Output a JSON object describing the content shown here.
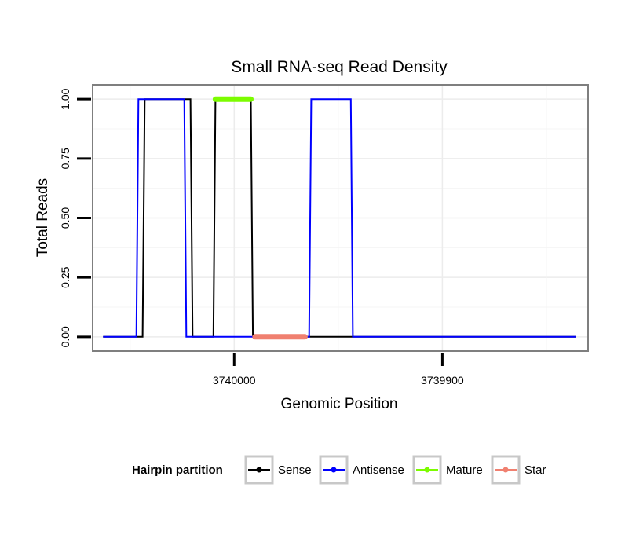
{
  "chart_data": {
    "type": "line",
    "title": "Small RNA-seq Read Density",
    "xlabel": "Genomic Position",
    "ylabel": "Total Reads",
    "x_reversed": true,
    "xlim": [
      3740068,
      3739830
    ],
    "ylim": [
      -0.06,
      1.06
    ],
    "x_ticks": [
      3740000,
      3739900
    ],
    "x_tick_labels": [
      "3740000",
      "3739900"
    ],
    "y_ticks": [
      0,
      0.25,
      0.5,
      0.75,
      1
    ],
    "y_tick_labels": [
      "0.00",
      "0.25",
      "0.50",
      "0.75",
      "1.00"
    ],
    "grid": true,
    "legend": {
      "title": "Hairpin partition",
      "position": "bottom",
      "entries": [
        "Sense",
        "Antisense",
        "Mature",
        "Star"
      ]
    },
    "series": [
      {
        "name": "Sense",
        "color": "#000000",
        "x": [
          3740063,
          3740044,
          3740043,
          3740021,
          3740020,
          3740010,
          3740009,
          3739992,
          3739991,
          3739836
        ],
        "y": [
          0,
          0,
          1,
          1,
          0,
          0,
          1,
          1,
          0,
          0
        ]
      },
      {
        "name": "Antisense",
        "color": "#0000ff",
        "x": [
          3740063,
          3740047,
          3740046,
          3740024,
          3740023,
          3739964,
          3739963,
          3739944,
          3739943,
          3739836
        ],
        "y": [
          0,
          0,
          1,
          1,
          0,
          0,
          1,
          1,
          0,
          0
        ]
      },
      {
        "name": "Mature",
        "color": "#7cfc00",
        "x": [
          3740009,
          3739992
        ],
        "y": [
          1,
          1
        ]
      },
      {
        "name": "Star",
        "color": "#f08070",
        "x": [
          3739990,
          3739966
        ],
        "y": [
          0,
          0
        ]
      }
    ]
  }
}
